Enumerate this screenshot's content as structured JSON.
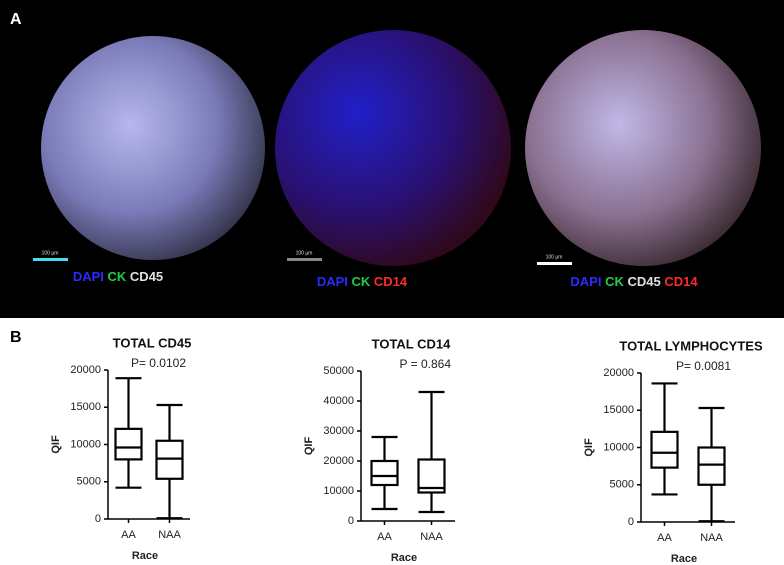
{
  "panel_a": {
    "label": "A",
    "images": [
      {
        "scale_bar": "100 µm",
        "caption": [
          {
            "text": "DAPI",
            "color": "#2b2bff"
          },
          {
            "text": "CK",
            "color": "#22cc44"
          },
          {
            "text": "CD45",
            "color": "#e0e0e0"
          }
        ]
      },
      {
        "scale_bar": "100 µm",
        "caption": [
          {
            "text": "DAPI",
            "color": "#2b2bff"
          },
          {
            "text": "CK",
            "color": "#22cc44"
          },
          {
            "text": "CD14",
            "color": "#ff2a2a"
          }
        ]
      },
      {
        "scale_bar": "100 µm",
        "caption": [
          {
            "text": "DAPI",
            "color": "#2b2bff"
          },
          {
            "text": "CK",
            "color": "#22cc44"
          },
          {
            "text": "CD45",
            "color": "#e0e0e0"
          },
          {
            "text": "CD14",
            "color": "#ff2a2a"
          }
        ]
      }
    ]
  },
  "panel_b": {
    "label": "B"
  },
  "chart_data": [
    {
      "type": "box",
      "title": "TOTAL CD45",
      "annotation": "P= 0.0102",
      "y_label": "QIF",
      "x_label": "Race",
      "categories": [
        "AA",
        "NAA"
      ],
      "boxes": [
        {
          "min": 4200,
          "q1": 8000,
          "median": 9600,
          "q3": 12100,
          "max": 18900
        },
        {
          "min": 100,
          "q1": 5400,
          "median": 8100,
          "q3": 10500,
          "max": 15300
        }
      ],
      "ylim": [
        0,
        20000
      ],
      "yticks": [
        0,
        5000,
        10000,
        15000,
        20000
      ]
    },
    {
      "type": "box",
      "title": "TOTAL CD14",
      "annotation": "P = 0.864",
      "y_label": "QIF",
      "x_label": "Race",
      "categories": [
        "AA",
        "NAA"
      ],
      "boxes": [
        {
          "min": 4000,
          "q1": 12000,
          "median": 15000,
          "q3": 20000,
          "max": 28000
        },
        {
          "min": 3000,
          "q1": 9500,
          "median": 11000,
          "q3": 20500,
          "max": 43000
        }
      ],
      "ylim": [
        0,
        50000
      ],
      "yticks": [
        0,
        10000,
        20000,
        30000,
        40000,
        50000
      ]
    },
    {
      "type": "box",
      "title": "TOTAL LYMPHOCYTES",
      "annotation": "P= 0.0081",
      "y_label": "QIF",
      "x_label": "Race",
      "categories": [
        "AA",
        "NAA"
      ],
      "boxes": [
        {
          "min": 3700,
          "q1": 7300,
          "median": 9300,
          "q3": 12100,
          "max": 18600
        },
        {
          "min": 100,
          "q1": 5000,
          "median": 7700,
          "q3": 10000,
          "max": 15300
        }
      ],
      "ylim": [
        0,
        20000
      ],
      "yticks": [
        0,
        5000,
        10000,
        15000,
        20000
      ]
    }
  ]
}
